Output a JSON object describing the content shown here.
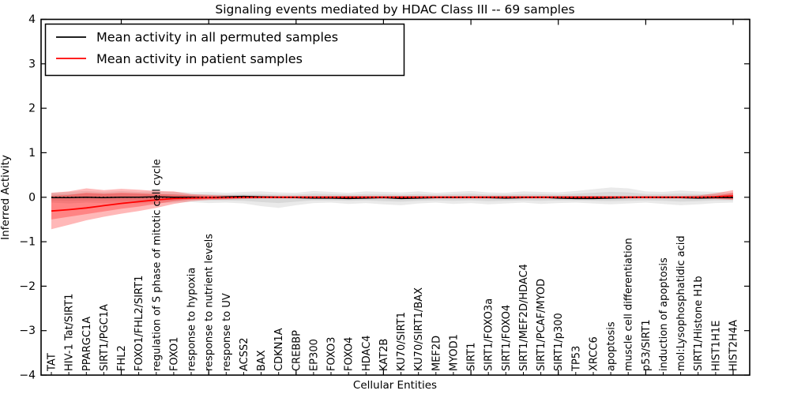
{
  "chart_data": {
    "type": "line",
    "title": "Signaling events mediated by HDAC Class III -- 69 samples",
    "xlabel": "Cellular Entities",
    "ylabel": "Inferred Activity",
    "ylim": [
      -4,
      4
    ],
    "yticks": [
      -4,
      -3,
      -2,
      -1,
      0,
      1,
      2,
      3,
      4
    ],
    "x_major_tick_indices": [
      4,
      9,
      14,
      19,
      24,
      29,
      34,
      39
    ],
    "grid": false,
    "legend": {
      "position": "upper left",
      "entries": [
        {
          "label": "Mean activity in all permuted samples",
          "color": "#000000"
        },
        {
          "label": "Mean activity in patient samples",
          "color": "#ff0000"
        }
      ]
    },
    "colors": {
      "patient_line": "#ff0000",
      "permuted_line": "#000000",
      "zero_reference_line": "#000000",
      "patient_band_fill": "rgba(255,0,0,0.28)",
      "permuted_band_fill": "rgba(125,125,125,0.16)"
    },
    "categories": [
      "TAT",
      "HIV-1 Tat/SIRT1",
      "PPARGC1A",
      "SIRT1/PGC1A",
      "FHL2",
      "FOXO1/FHL2/SIRT1",
      "regulation of S phase of mitotic cell cycle",
      "FOXO1",
      "response to hypoxia",
      "response to nutrient levels",
      "response to UV",
      "ACSS2",
      "BAX",
      "CDKN1A",
      "CREBBP",
      "EP300",
      "FOXO3",
      "FOXO4",
      "HDAC4",
      "KAT2B",
      "KU70/SIRT1",
      "KU70/SIRT1/BAX",
      "MEF2D",
      "MYOD1",
      "SIRT1",
      "SIRT1/FOXO3a",
      "SIRT1/FOXO4",
      "SIRT1/MEF2D/HDAC4",
      "SIRT1/PCAF/MYOD",
      "SIRT1/p300",
      "TP53",
      "XRCC6",
      "apoptosis",
      "muscle cell differentiation",
      "p53/SIRT1",
      "induction of apoptosis",
      "mol:Lysophosphatidic acid",
      "SIRT1/Histone H1b",
      "HIST1H1E",
      "HIST2H4A"
    ],
    "series": [
      {
        "name": "Mean activity in all permuted samples",
        "style": "solid",
        "values": [
          -0.01,
          -0.01,
          0,
          -0.01,
          0,
          0,
          0.01,
          0,
          0,
          -0.01,
          0.01,
          0.02,
          0.01,
          0,
          -0.01,
          -0.02,
          -0.02,
          -0.03,
          -0.02,
          -0.01,
          -0.03,
          -0.02,
          -0.01,
          -0.01,
          0,
          -0.01,
          -0.02,
          -0.01,
          0,
          -0.02,
          -0.03,
          -0.03,
          -0.02,
          -0.01,
          0,
          -0.01,
          -0.01,
          -0.02,
          -0.01,
          -0.01
        ]
      },
      {
        "name": "Mean activity in patient samples",
        "style": "solid",
        "values": [
          -0.31,
          -0.28,
          -0.24,
          -0.19,
          -0.14,
          -0.1,
          -0.06,
          -0.03,
          -0.02,
          -0.01,
          -0.01,
          0,
          0,
          0,
          0,
          0,
          0,
          0,
          0,
          0,
          0,
          0,
          0,
          0,
          0,
          0,
          0,
          0,
          0,
          0,
          0,
          0,
          0,
          0,
          0,
          0,
          0,
          0,
          0.01,
          0.03
        ]
      },
      {
        "name": "zero reference",
        "style": "dotted",
        "values": [
          0,
          0,
          0,
          0,
          0,
          0,
          0,
          0,
          0,
          0,
          0,
          0,
          0,
          0,
          0,
          0,
          0,
          0,
          0,
          0,
          0,
          0,
          0,
          0,
          0,
          0,
          0,
          0,
          0,
          0,
          0,
          0,
          0,
          0,
          0,
          0,
          0,
          0,
          0,
          0
        ]
      }
    ],
    "bands": [
      {
        "name": "permuted-band-outer",
        "hi": [
          0.1,
          0.12,
          0.14,
          0.12,
          0.14,
          0.12,
          0.13,
          0.12,
          0.11,
          0.12,
          0.1,
          0.12,
          0.13,
          0.11,
          0.1,
          0.14,
          0.12,
          0.1,
          0.13,
          0.12,
          0.11,
          0.13,
          0.1,
          0.12,
          0.14,
          0.11,
          0.1,
          0.13,
          0.12,
          0.11,
          0.14,
          0.18,
          0.22,
          0.2,
          0.13,
          0.12,
          0.15,
          0.13,
          0.12,
          0.1
        ],
        "lo": [
          -0.12,
          -0.14,
          -0.12,
          -0.13,
          -0.12,
          -0.14,
          -0.13,
          -0.12,
          -0.11,
          -0.13,
          -0.12,
          -0.14,
          -0.2,
          -0.24,
          -0.18,
          -0.13,
          -0.12,
          -0.15,
          -0.13,
          -0.16,
          -0.18,
          -0.14,
          -0.12,
          -0.15,
          -0.13,
          -0.16,
          -0.14,
          -0.12,
          -0.15,
          -0.13,
          -0.12,
          -0.14,
          -0.16,
          -0.14,
          -0.12,
          -0.15,
          -0.18,
          -0.16,
          -0.13,
          -0.12
        ]
      },
      {
        "name": "permuted-band-inner",
        "hi": [
          0.06,
          0.07,
          0.08,
          0.07,
          0.08,
          0.07,
          0.07,
          0.07,
          0.06,
          0.07,
          0.06,
          0.07,
          0.07,
          0.06,
          0.06,
          0.08,
          0.07,
          0.06,
          0.07,
          0.07,
          0.06,
          0.07,
          0.06,
          0.07,
          0.08,
          0.06,
          0.06,
          0.07,
          0.07,
          0.06,
          0.08,
          0.1,
          0.12,
          0.11,
          0.07,
          0.07,
          0.08,
          0.07,
          0.07,
          0.06
        ],
        "lo": [
          -0.07,
          -0.08,
          -0.07,
          -0.07,
          -0.07,
          -0.08,
          -0.07,
          -0.07,
          -0.06,
          -0.07,
          -0.07,
          -0.08,
          -0.11,
          -0.13,
          -0.1,
          -0.07,
          -0.07,
          -0.08,
          -0.07,
          -0.09,
          -0.1,
          -0.08,
          -0.07,
          -0.08,
          -0.07,
          -0.09,
          -0.08,
          -0.07,
          -0.08,
          -0.07,
          -0.07,
          -0.08,
          -0.09,
          -0.08,
          -0.07,
          -0.08,
          -0.1,
          -0.09,
          -0.07,
          -0.07
        ]
      },
      {
        "name": "patient-band-outer",
        "hi": [
          0.1,
          0.13,
          0.2,
          0.16,
          0.19,
          0.17,
          0.14,
          0.13,
          0.07,
          0.05,
          0.04,
          0.03,
          0.03,
          0.03,
          0.03,
          0.03,
          0.03,
          0.03,
          0.03,
          0.03,
          0.03,
          0.03,
          0.03,
          0.03,
          0.03,
          0.03,
          0.03,
          0.03,
          0.03,
          0.03,
          0.03,
          0.03,
          0.03,
          0.03,
          0.03,
          0.03,
          0.03,
          0.04,
          0.09,
          0.16
        ],
        "lo": [
          -0.72,
          -0.62,
          -0.52,
          -0.44,
          -0.37,
          -0.31,
          -0.24,
          -0.15,
          -0.09,
          -0.06,
          -0.05,
          -0.04,
          -0.03,
          -0.03,
          -0.03,
          -0.03,
          -0.03,
          -0.03,
          -0.03,
          -0.03,
          -0.03,
          -0.03,
          -0.03,
          -0.03,
          -0.03,
          -0.03,
          -0.03,
          -0.03,
          -0.03,
          -0.03,
          -0.03,
          -0.03,
          -0.03,
          -0.03,
          -0.03,
          -0.03,
          -0.03,
          -0.03,
          -0.04,
          -0.06
        ]
      },
      {
        "name": "patient-band-inner",
        "hi": [
          0.03,
          0.05,
          0.1,
          0.08,
          0.1,
          0.09,
          0.07,
          0.06,
          0.04,
          0.03,
          0.02,
          0.02,
          0.02,
          0.02,
          0.02,
          0.02,
          0.02,
          0.02,
          0.02,
          0.02,
          0.02,
          0.02,
          0.02,
          0.02,
          0.02,
          0.02,
          0.02,
          0.02,
          0.02,
          0.02,
          0.02,
          0.02,
          0.02,
          0.02,
          0.02,
          0.02,
          0.02,
          0.02,
          0.03,
          0.1
        ],
        "lo": [
          -0.5,
          -0.44,
          -0.38,
          -0.32,
          -0.26,
          -0.21,
          -0.15,
          -0.09,
          -0.05,
          -0.04,
          -0.03,
          -0.02,
          -0.02,
          -0.02,
          -0.02,
          -0.02,
          -0.02,
          -0.02,
          -0.02,
          -0.02,
          -0.02,
          -0.02,
          -0.02,
          -0.02,
          -0.02,
          -0.02,
          -0.02,
          -0.02,
          -0.02,
          -0.02,
          -0.02,
          -0.02,
          -0.02,
          -0.02,
          -0.02,
          -0.02,
          -0.02,
          -0.02,
          -0.03,
          -0.04
        ]
      }
    ]
  }
}
